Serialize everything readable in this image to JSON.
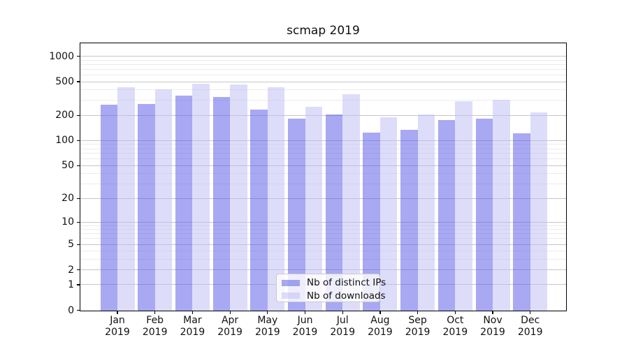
{
  "chart_data": {
    "type": "bar",
    "title": "scmap 2019",
    "x": {
      "months": [
        "Jan",
        "Feb",
        "Mar",
        "Apr",
        "May",
        "Jun",
        "Jul",
        "Aug",
        "Sep",
        "Oct",
        "Nov",
        "Dec"
      ],
      "year": "2019"
    },
    "y_axis": {
      "scale": "log10(1+value)",
      "ticks": [
        0,
        1,
        2,
        5,
        10,
        20,
        50,
        100,
        200,
        500,
        1000
      ],
      "minor_ticks": [
        3,
        4,
        6,
        7,
        8,
        9,
        30,
        40,
        60,
        70,
        80,
        90,
        300,
        400,
        600,
        700,
        800,
        900
      ],
      "grid": "on"
    },
    "series": [
      {
        "name": "Nb of distinct IPs",
        "color_hex": "#a8a8f3",
        "fill": "rgba(81,81,231,0.5)",
        "values": [
          265,
          273,
          345,
          330,
          233,
          184,
          205,
          125,
          133,
          174,
          184,
          122
        ]
      },
      {
        "name": "Nb of downloads",
        "color_hex": "#ddddfa",
        "fill": "rgba(187,187,245,0.5)",
        "values": [
          430,
          405,
          474,
          468,
          426,
          253,
          356,
          190,
          205,
          296,
          304,
          218
        ]
      }
    ],
    "legend_position": "lower center"
  },
  "style": {
    "background": "#ffffff",
    "grid_major": "#c6c6c6",
    "grid_minor": "#ececec",
    "spine": "#000000",
    "text": "#111111"
  }
}
